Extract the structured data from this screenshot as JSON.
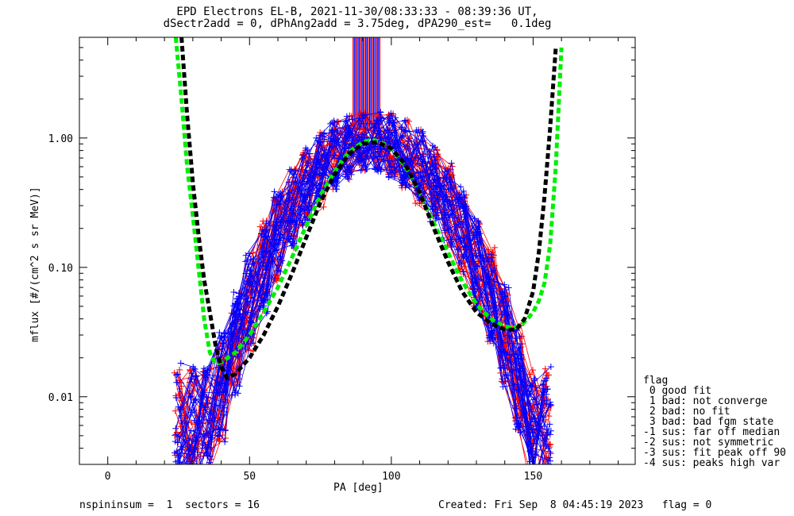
{
  "title": "EPD Electrons EL-B, 2021-11-30/08:33:33 - 08:39:36 UT,",
  "subtitle": "dSectr2add = 0, dPhAng2add = 3.75deg, dPA290_est=   0.1deg",
  "footer": {
    "left": "nspininsum =  1  sectors = 16",
    "right": "Created: Fri Sep  8 04:45:19 2023   flag = 0"
  },
  "legend": {
    "title": "flag",
    "entries": [
      " 0 good fit",
      " 1 bad: not converge",
      " 2 bad: no fit",
      " 3 bad: bad fgm state",
      "-1 sus: far off median",
      "-2 sus: not symmetric",
      "-3 sus: fit peak off 90",
      "-4 sus: peaks high var"
    ]
  },
  "colors": {
    "series_a": "#ff0000",
    "series_b": "#0000ff",
    "fit_green": "#00ee00",
    "fit_black": "#000000"
  },
  "chart_data": {
    "type": "line",
    "title": "EPD Electrons EL-B, 2021-11-30/08:33:33 - 08:39:36 UT,",
    "subtitle": "dSectr2add = 0, dPhAng2add = 3.75deg, dPA290_est=   0.1deg",
    "xlabel": "PA [deg]",
    "ylabel": "mflux [#/(cm^2 s sr MeV)]",
    "xlim": [
      -10,
      186
    ],
    "ylim": [
      0.003,
      6.0
    ],
    "yscale": "log",
    "x_ticks": [
      0,
      50,
      100,
      150
    ],
    "x_tick_labels": [
      "0",
      "50",
      "100",
      "150"
    ],
    "y_ticks": [
      0.01,
      0.1,
      1.0
    ],
    "y_tick_labels": [
      "0.01",
      "0.10",
      "1.00"
    ],
    "grid": false,
    "legend_position": "right-bottom",
    "series": [
      {
        "color": "#00ee00",
        "style": "dashed-thick",
        "points": [
          [
            24,
            6.0
          ],
          [
            26,
            2.0
          ],
          [
            28,
            0.6
          ],
          [
            30,
            0.25
          ],
          [
            32,
            0.1
          ],
          [
            34,
            0.04
          ],
          [
            36,
            0.022
          ],
          [
            38,
            0.018
          ],
          [
            40,
            0.0185
          ],
          [
            45,
            0.022
          ],
          [
            50,
            0.03
          ],
          [
            55,
            0.045
          ],
          [
            60,
            0.07
          ],
          [
            65,
            0.12
          ],
          [
            70,
            0.21
          ],
          [
            75,
            0.36
          ],
          [
            80,
            0.55
          ],
          [
            85,
            0.78
          ],
          [
            90,
            0.93
          ],
          [
            93,
            0.97
          ],
          [
            96,
            0.94
          ],
          [
            100,
            0.82
          ],
          [
            105,
            0.6
          ],
          [
            110,
            0.38
          ],
          [
            115,
            0.22
          ],
          [
            120,
            0.13
          ],
          [
            125,
            0.078
          ],
          [
            130,
            0.052
          ],
          [
            135,
            0.04
          ],
          [
            140,
            0.035
          ],
          [
            143,
            0.034
          ],
          [
            146,
            0.036
          ],
          [
            148,
            0.04
          ],
          [
            150,
            0.045
          ],
          [
            152,
            0.055
          ],
          [
            154,
            0.075
          ],
          [
            156,
            0.15
          ],
          [
            158,
            0.6
          ],
          [
            160,
            5.0
          ]
        ]
      },
      {
        "color": "#000000",
        "style": "dashed-thick",
        "points": [
          [
            26,
            6.0
          ],
          [
            28,
            1.5
          ],
          [
            30,
            0.45
          ],
          [
            32,
            0.18
          ],
          [
            34,
            0.08
          ],
          [
            36,
            0.045
          ],
          [
            38,
            0.025
          ],
          [
            40,
            0.017
          ],
          [
            42,
            0.014
          ],
          [
            45,
            0.015
          ],
          [
            50,
            0.02
          ],
          [
            55,
            0.03
          ],
          [
            60,
            0.05
          ],
          [
            65,
            0.09
          ],
          [
            70,
            0.17
          ],
          [
            75,
            0.32
          ],
          [
            80,
            0.52
          ],
          [
            85,
            0.75
          ],
          [
            90,
            0.9
          ],
          [
            95,
            0.93
          ],
          [
            100,
            0.83
          ],
          [
            105,
            0.62
          ],
          [
            110,
            0.38
          ],
          [
            115,
            0.2
          ],
          [
            120,
            0.11
          ],
          [
            125,
            0.065
          ],
          [
            130,
            0.045
          ],
          [
            135,
            0.037
          ],
          [
            140,
            0.033
          ],
          [
            144,
            0.033
          ],
          [
            147,
            0.04
          ],
          [
            150,
            0.065
          ],
          [
            152,
            0.13
          ],
          [
            154,
            0.35
          ],
          [
            156,
            1.2
          ],
          [
            158,
            5.0
          ]
        ]
      }
    ]
  }
}
